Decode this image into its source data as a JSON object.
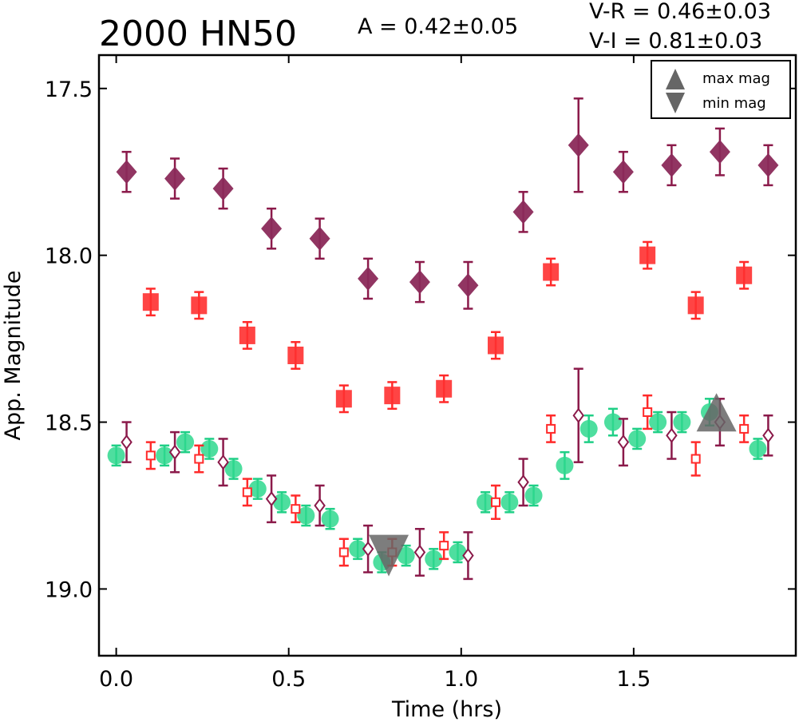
{
  "chart_data": {
    "type": "scatter",
    "title": "2000 HN50",
    "annotations": {
      "amplitude": "A  = 0.42±0.05",
      "color_vr": "V-R = 0.46±0.03",
      "color_vi": "V-I  = 0.81±0.03"
    },
    "xlabel": "Time (hrs)",
    "ylabel": "App. Magnitude",
    "xlim": [
      -0.05,
      1.97
    ],
    "ylim": [
      19.2,
      17.4
    ],
    "y_inverted": true,
    "xticks": [
      "0.0",
      "0.5",
      "1.0",
      "1.5"
    ],
    "xtick_values": [
      0.0,
      0.5,
      1.0,
      1.5
    ],
    "yticks": [
      "17.5",
      "18.0",
      "18.5",
      "19.0"
    ],
    "ytick_values": [
      17.5,
      18.0,
      18.5,
      19.0
    ],
    "grid": false,
    "legend": {
      "placement": "top-right",
      "entries": [
        {
          "label": "max mag",
          "marker": "triangle-up",
          "color": "#666666"
        },
        {
          "label": "min mag",
          "marker": "triangle-down",
          "color": "#666666"
        }
      ]
    },
    "series": [
      {
        "marker": "diamond-filled",
        "color": "#8b1a4a",
        "face": "#8b2a5a",
        "points": [
          {
            "x": 0.03,
            "y": 17.75,
            "err": 0.06
          },
          {
            "x": 0.17,
            "y": 17.77,
            "err": 0.06
          },
          {
            "x": 0.31,
            "y": 17.8,
            "err": 0.06
          },
          {
            "x": 0.45,
            "y": 17.92,
            "err": 0.06
          },
          {
            "x": 0.59,
            "y": 17.95,
            "err": 0.06
          },
          {
            "x": 0.73,
            "y": 18.07,
            "err": 0.06
          },
          {
            "x": 0.88,
            "y": 18.08,
            "err": 0.06
          },
          {
            "x": 1.02,
            "y": 18.09,
            "err": 0.07
          },
          {
            "x": 1.18,
            "y": 17.87,
            "err": 0.06
          },
          {
            "x": 1.34,
            "y": 17.67,
            "err": 0.14
          },
          {
            "x": 1.47,
            "y": 17.75,
            "err": 0.06
          },
          {
            "x": 1.61,
            "y": 17.73,
            "err": 0.06
          },
          {
            "x": 1.75,
            "y": 17.69,
            "err": 0.07
          },
          {
            "x": 1.89,
            "y": 17.73,
            "err": 0.06
          }
        ]
      },
      {
        "marker": "square-filled",
        "color": "#ff2a2a",
        "face": "#ff3030",
        "points": [
          {
            "x": 0.1,
            "y": 18.14,
            "err": 0.04
          },
          {
            "x": 0.24,
            "y": 18.15,
            "err": 0.04
          },
          {
            "x": 0.38,
            "y": 18.24,
            "err": 0.04
          },
          {
            "x": 0.52,
            "y": 18.3,
            "err": 0.04
          },
          {
            "x": 0.66,
            "y": 18.43,
            "err": 0.04
          },
          {
            "x": 0.8,
            "y": 18.42,
            "err": 0.04
          },
          {
            "x": 0.95,
            "y": 18.4,
            "err": 0.04
          },
          {
            "x": 1.1,
            "y": 18.27,
            "err": 0.04
          },
          {
            "x": 1.26,
            "y": 18.05,
            "err": 0.04
          },
          {
            "x": 1.54,
            "y": 18.0,
            "err": 0.04
          },
          {
            "x": 1.68,
            "y": 18.15,
            "err": 0.04
          },
          {
            "x": 1.82,
            "y": 18.06,
            "err": 0.04
          }
        ]
      },
      {
        "marker": "circle-filled",
        "color": "#1fcf86",
        "face": "#2fd88e",
        "points": [
          {
            "x": 0.0,
            "y": 18.6,
            "err": 0.03
          },
          {
            "x": 0.14,
            "y": 18.6,
            "err": 0.03
          },
          {
            "x": 0.2,
            "y": 18.56,
            "err": 0.03
          },
          {
            "x": 0.27,
            "y": 18.58,
            "err": 0.03
          },
          {
            "x": 0.34,
            "y": 18.64,
            "err": 0.03
          },
          {
            "x": 0.41,
            "y": 18.7,
            "err": 0.03
          },
          {
            "x": 0.48,
            "y": 18.74,
            "err": 0.03
          },
          {
            "x": 0.55,
            "y": 18.78,
            "err": 0.03
          },
          {
            "x": 0.62,
            "y": 18.79,
            "err": 0.03
          },
          {
            "x": 0.7,
            "y": 18.88,
            "err": 0.03
          },
          {
            "x": 0.77,
            "y": 18.92,
            "err": 0.03
          },
          {
            "x": 0.84,
            "y": 18.9,
            "err": 0.03
          },
          {
            "x": 0.92,
            "y": 18.91,
            "err": 0.03
          },
          {
            "x": 0.99,
            "y": 18.89,
            "err": 0.03
          },
          {
            "x": 1.07,
            "y": 18.74,
            "err": 0.03
          },
          {
            "x": 1.14,
            "y": 18.74,
            "err": 0.03
          },
          {
            "x": 1.21,
            "y": 18.72,
            "err": 0.03
          },
          {
            "x": 1.3,
            "y": 18.63,
            "err": 0.04
          },
          {
            "x": 1.37,
            "y": 18.52,
            "err": 0.04
          },
          {
            "x": 1.44,
            "y": 18.5,
            "err": 0.04
          },
          {
            "x": 1.51,
            "y": 18.55,
            "err": 0.03
          },
          {
            "x": 1.57,
            "y": 18.5,
            "err": 0.03
          },
          {
            "x": 1.64,
            "y": 18.5,
            "err": 0.03
          },
          {
            "x": 1.72,
            "y": 18.47,
            "err": 0.04
          },
          {
            "x": 1.86,
            "y": 18.58,
            "err": 0.03
          }
        ]
      },
      {
        "marker": "diamond-open",
        "color": "#8b1a4a",
        "points": [
          {
            "x": 0.03,
            "y": 18.56,
            "err": 0.06
          },
          {
            "x": 0.17,
            "y": 18.59,
            "err": 0.06
          },
          {
            "x": 0.31,
            "y": 18.62,
            "err": 0.07
          },
          {
            "x": 0.45,
            "y": 18.73,
            "err": 0.07
          },
          {
            "x": 0.59,
            "y": 18.75,
            "err": 0.06
          },
          {
            "x": 0.73,
            "y": 18.88,
            "err": 0.07
          },
          {
            "x": 0.88,
            "y": 18.89,
            "err": 0.07
          },
          {
            "x": 1.02,
            "y": 18.9,
            "err": 0.07
          },
          {
            "x": 1.18,
            "y": 18.68,
            "err": 0.07
          },
          {
            "x": 1.34,
            "y": 18.48,
            "err": 0.14
          },
          {
            "x": 1.47,
            "y": 18.56,
            "err": 0.07
          },
          {
            "x": 1.61,
            "y": 18.54,
            "err": 0.07
          },
          {
            "x": 1.75,
            "y": 18.5,
            "err": 0.07
          },
          {
            "x": 1.89,
            "y": 18.54,
            "err": 0.06
          }
        ]
      },
      {
        "marker": "square-open",
        "color": "#ff2a2a",
        "points": [
          {
            "x": 0.1,
            "y": 18.6,
            "err": 0.04
          },
          {
            "x": 0.24,
            "y": 18.61,
            "err": 0.04
          },
          {
            "x": 0.38,
            "y": 18.71,
            "err": 0.04
          },
          {
            "x": 0.52,
            "y": 18.76,
            "err": 0.04
          },
          {
            "x": 0.66,
            "y": 18.89,
            "err": 0.04
          },
          {
            "x": 0.8,
            "y": 18.89,
            "err": 0.04
          },
          {
            "x": 0.95,
            "y": 18.87,
            "err": 0.04
          },
          {
            "x": 1.1,
            "y": 18.74,
            "err": 0.05
          },
          {
            "x": 1.26,
            "y": 18.52,
            "err": 0.04
          },
          {
            "x": 1.54,
            "y": 18.47,
            "err": 0.05
          },
          {
            "x": 1.68,
            "y": 18.61,
            "err": 0.05
          },
          {
            "x": 1.82,
            "y": 18.52,
            "err": 0.04
          }
        ]
      }
    ],
    "extrema": [
      {
        "kind": "min mag",
        "x": 0.79,
        "y": 18.9,
        "marker": "triangle-down",
        "color": "#666666"
      },
      {
        "kind": "max mag",
        "x": 1.74,
        "y": 18.48,
        "marker": "triangle-up",
        "color": "#666666"
      }
    ]
  }
}
